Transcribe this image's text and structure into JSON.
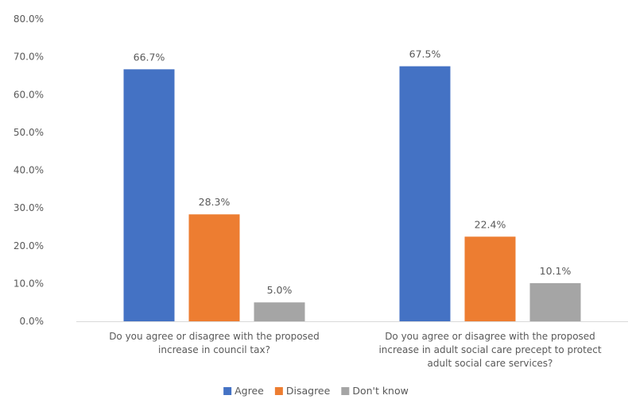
{
  "chart_data": {
    "type": "bar",
    "categories": [
      [
        "Do you agree or disagree with the proposed",
        "increase in council tax?"
      ],
      [
        "Do you agree or disagree with the proposed",
        "increase in adult social care precept to protect",
        "adult social care services?"
      ]
    ],
    "series": [
      {
        "name": "Agree",
        "color": "#4472C4",
        "values": [
          66.7,
          67.5
        ],
        "labels": [
          "66.7%",
          "67.5%"
        ]
      },
      {
        "name": "Disagree",
        "color": "#ED7D31",
        "values": [
          28.3,
          22.4
        ],
        "labels": [
          "28.3%",
          "22.4%"
        ]
      },
      {
        "name": "Don't know",
        "color": "#A5A5A5",
        "values": [
          5.0,
          10.1
        ],
        "labels": [
          "5.0%",
          "10.1%"
        ]
      }
    ],
    "ylim": [
      0,
      80
    ],
    "yticks": [
      {
        "value": 0,
        "label": "0.0%"
      },
      {
        "value": 10,
        "label": "10.0%"
      },
      {
        "value": 20,
        "label": "20.0%"
      },
      {
        "value": 30,
        "label": "30.0%"
      },
      {
        "value": 40,
        "label": "40.0%"
      },
      {
        "value": 50,
        "label": "50.0%"
      },
      {
        "value": 60,
        "label": "60.0%"
      },
      {
        "value": 70,
        "label": "70.0%"
      },
      {
        "value": 80,
        "label": "80.0%"
      }
    ],
    "grid": false,
    "legend": "bottom",
    "axis_color": "#D9D9D9",
    "text_color": "#595959"
  }
}
